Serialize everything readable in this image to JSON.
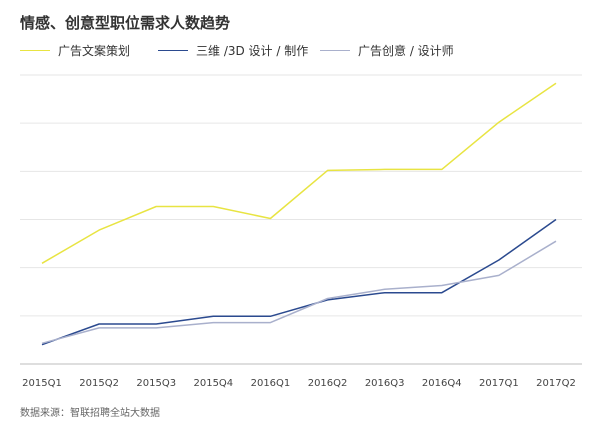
{
  "title": "情感、创意型职位需求人数趋势",
  "source_note": "数据来源：智联招聘全站大数据",
  "chart_data": {
    "type": "line",
    "title": "情感、创意型职位需求人数趋势",
    "xlabel": "",
    "ylabel": "",
    "categories": [
      "2015Q1",
      "2015Q2",
      "2015Q3",
      "2015Q4",
      "2016Q1",
      "2016Q2",
      "2016Q3",
      "2016Q4",
      "2017Q1",
      "2017Q2"
    ],
    "ylim": [
      0,
      6
    ],
    "yticks": [
      0,
      1,
      2,
      3,
      4,
      5,
      6
    ],
    "grid": true,
    "legend_position": "top",
    "series": [
      {
        "name": "广告文案策划",
        "color": "#e8e442",
        "values": [
          2.09,
          2.78,
          3.27,
          3.27,
          3.02,
          4.02,
          4.04,
          4.04,
          5.02,
          5.83
        ]
      },
      {
        "name": "三维 /3D 设计 / 制作",
        "color": "#2b4a8f",
        "values": [
          0.4,
          0.83,
          0.83,
          0.99,
          0.99,
          1.33,
          1.48,
          1.48,
          2.16,
          3.0
        ]
      },
      {
        "name": "广告创意 / 设计师",
        "color": "#a9b0cc",
        "values": [
          0.43,
          0.75,
          0.75,
          0.86,
          0.86,
          1.36,
          1.55,
          1.63,
          1.84,
          2.55
        ]
      }
    ]
  }
}
